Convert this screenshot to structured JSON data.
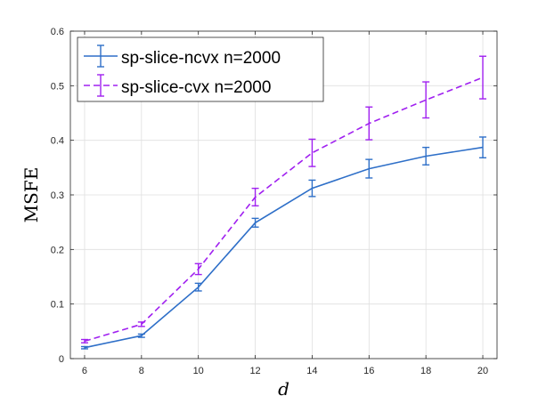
{
  "chart_data": {
    "type": "line",
    "xlabel": "d",
    "ylabel": "MSFE",
    "x": [
      6,
      8,
      10,
      12,
      14,
      16,
      18,
      20
    ],
    "xlim": [
      5.5,
      20.5
    ],
    "ylim": [
      0,
      0.6
    ],
    "xticks": [
      6,
      8,
      10,
      12,
      14,
      16,
      18,
      20
    ],
    "yticks": [
      0,
      0.1,
      0.2,
      0.3,
      0.4,
      0.5,
      0.6
    ],
    "grid": true,
    "legend_position": "top-left",
    "series": [
      {
        "name": "sp-slice-ncvx n=2000",
        "color": "#2e6fc8",
        "line_style": "solid",
        "values": [
          0.02,
          0.042,
          0.131,
          0.249,
          0.312,
          0.348,
          0.371,
          0.387
        ],
        "error": [
          0.002,
          0.003,
          0.007,
          0.008,
          0.015,
          0.017,
          0.016,
          0.019
        ]
      },
      {
        "name": "sp-slice-cvx n=2000",
        "color": "#a020f0",
        "line_style": "dashed",
        "values": [
          0.032,
          0.063,
          0.164,
          0.296,
          0.377,
          0.431,
          0.474,
          0.515
        ],
        "error": [
          0.003,
          0.004,
          0.01,
          0.016,
          0.025,
          0.03,
          0.033,
          0.039
        ]
      }
    ]
  }
}
